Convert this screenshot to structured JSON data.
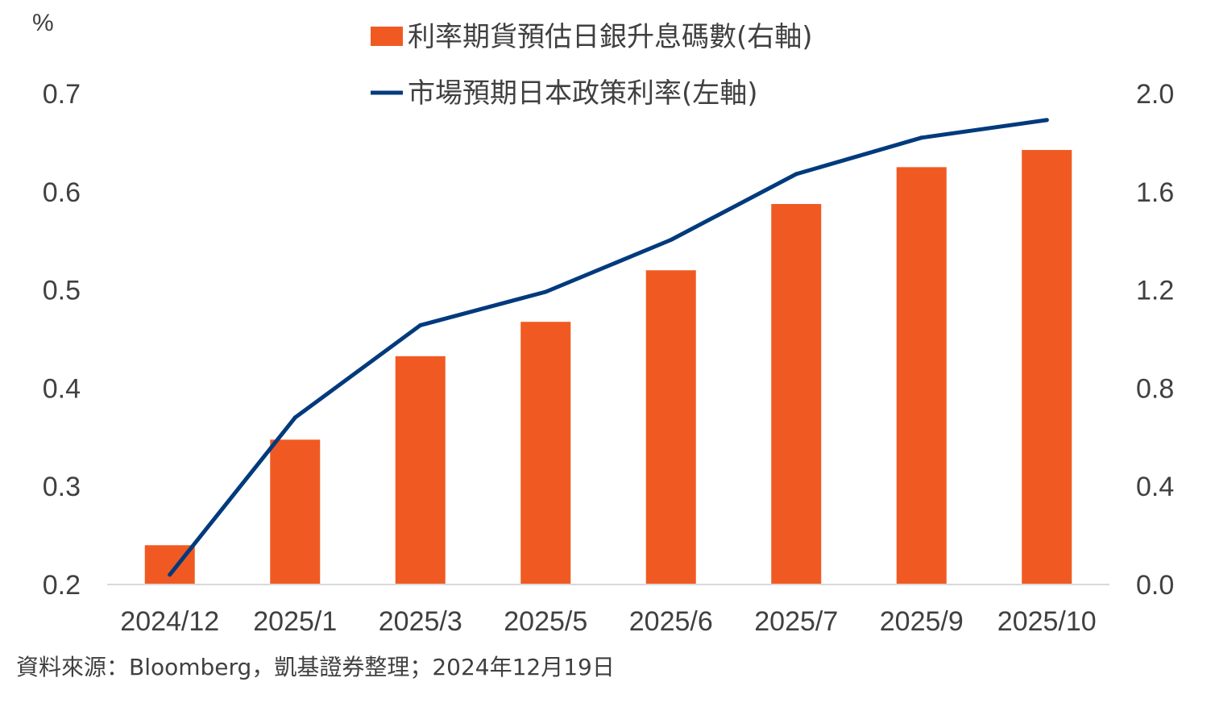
{
  "chart_data": {
    "type": "bar",
    "categories": [
      "2024/12",
      "2025/1",
      "2025/3",
      "2025/5",
      "2025/6",
      "2025/7",
      "2025/9",
      "2025/10"
    ],
    "series": [
      {
        "name": "利率期貨預估日銀升息碼數(右軸)",
        "type": "bar",
        "axis": "right",
        "color": "#F05A22",
        "values": [
          0.16,
          0.59,
          0.93,
          1.07,
          1.28,
          1.55,
          1.7,
          1.77
        ]
      },
      {
        "name": "市場預期日本政策利率(左軸)",
        "type": "line",
        "axis": "left",
        "color": "#003A7D",
        "values": [
          0.21,
          0.37,
          0.464,
          0.498,
          0.551,
          0.618,
          0.655,
          0.673
        ]
      }
    ],
    "y_left": {
      "label": "%",
      "ylim": [
        0.2,
        0.7
      ],
      "ticks": [
        "0.2",
        "0.3",
        "0.4",
        "0.5",
        "0.6",
        "0.7"
      ]
    },
    "y_right": {
      "ylim": [
        0.0,
        2.0
      ],
      "ticks": [
        "0.0",
        "0.4",
        "0.8",
        "1.2",
        "1.6",
        "2.0"
      ]
    },
    "grid": false,
    "legend_position": "top-center"
  },
  "source_note": "資料來源：Bloomberg，凱基證券整理；2024年12月19日"
}
